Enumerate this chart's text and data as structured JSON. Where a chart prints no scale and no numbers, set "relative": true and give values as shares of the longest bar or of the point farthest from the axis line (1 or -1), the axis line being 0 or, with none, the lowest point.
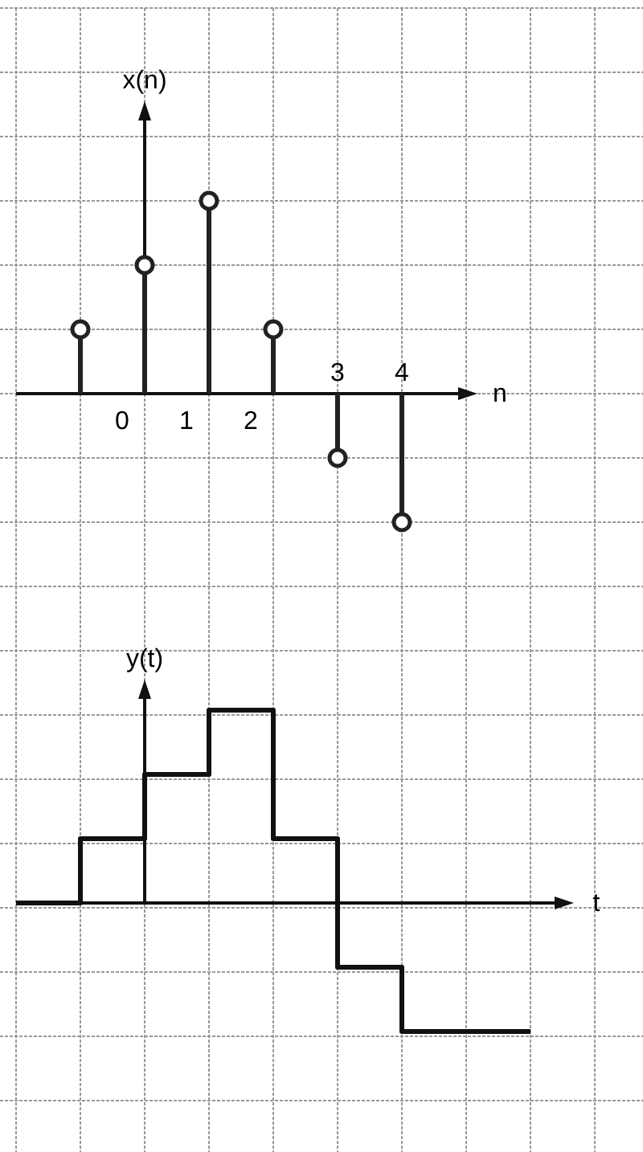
{
  "chart_data": [
    {
      "type": "lollipop",
      "ylabel": "x(n)",
      "xlabel": "n",
      "categories": [
        null,
        "0",
        "1",
        "2",
        "3",
        "4"
      ],
      "values": [
        0.3333,
        0.6667,
        1,
        0.3333,
        -0.3333,
        -0.6667
      ],
      "relative": true,
      "marker": "circle",
      "color": "#222222",
      "grid": true,
      "ref_lines": [
        {
          "axis": "x",
          "value": "0"
        }
      ]
    },
    {
      "type": "step",
      "ylabel": "y(t)",
      "xlabel": "t",
      "categories": [
        null,
        null,
        null,
        null,
        null,
        null,
        null,
        null,
        null
      ],
      "values": [
        0,
        0.3333,
        0.6667,
        1,
        0.3333,
        -0.3333,
        -0.6667,
        -0.6667,
        -0.6667
      ],
      "relative": true,
      "color": "#111111",
      "grid": true
    }
  ]
}
